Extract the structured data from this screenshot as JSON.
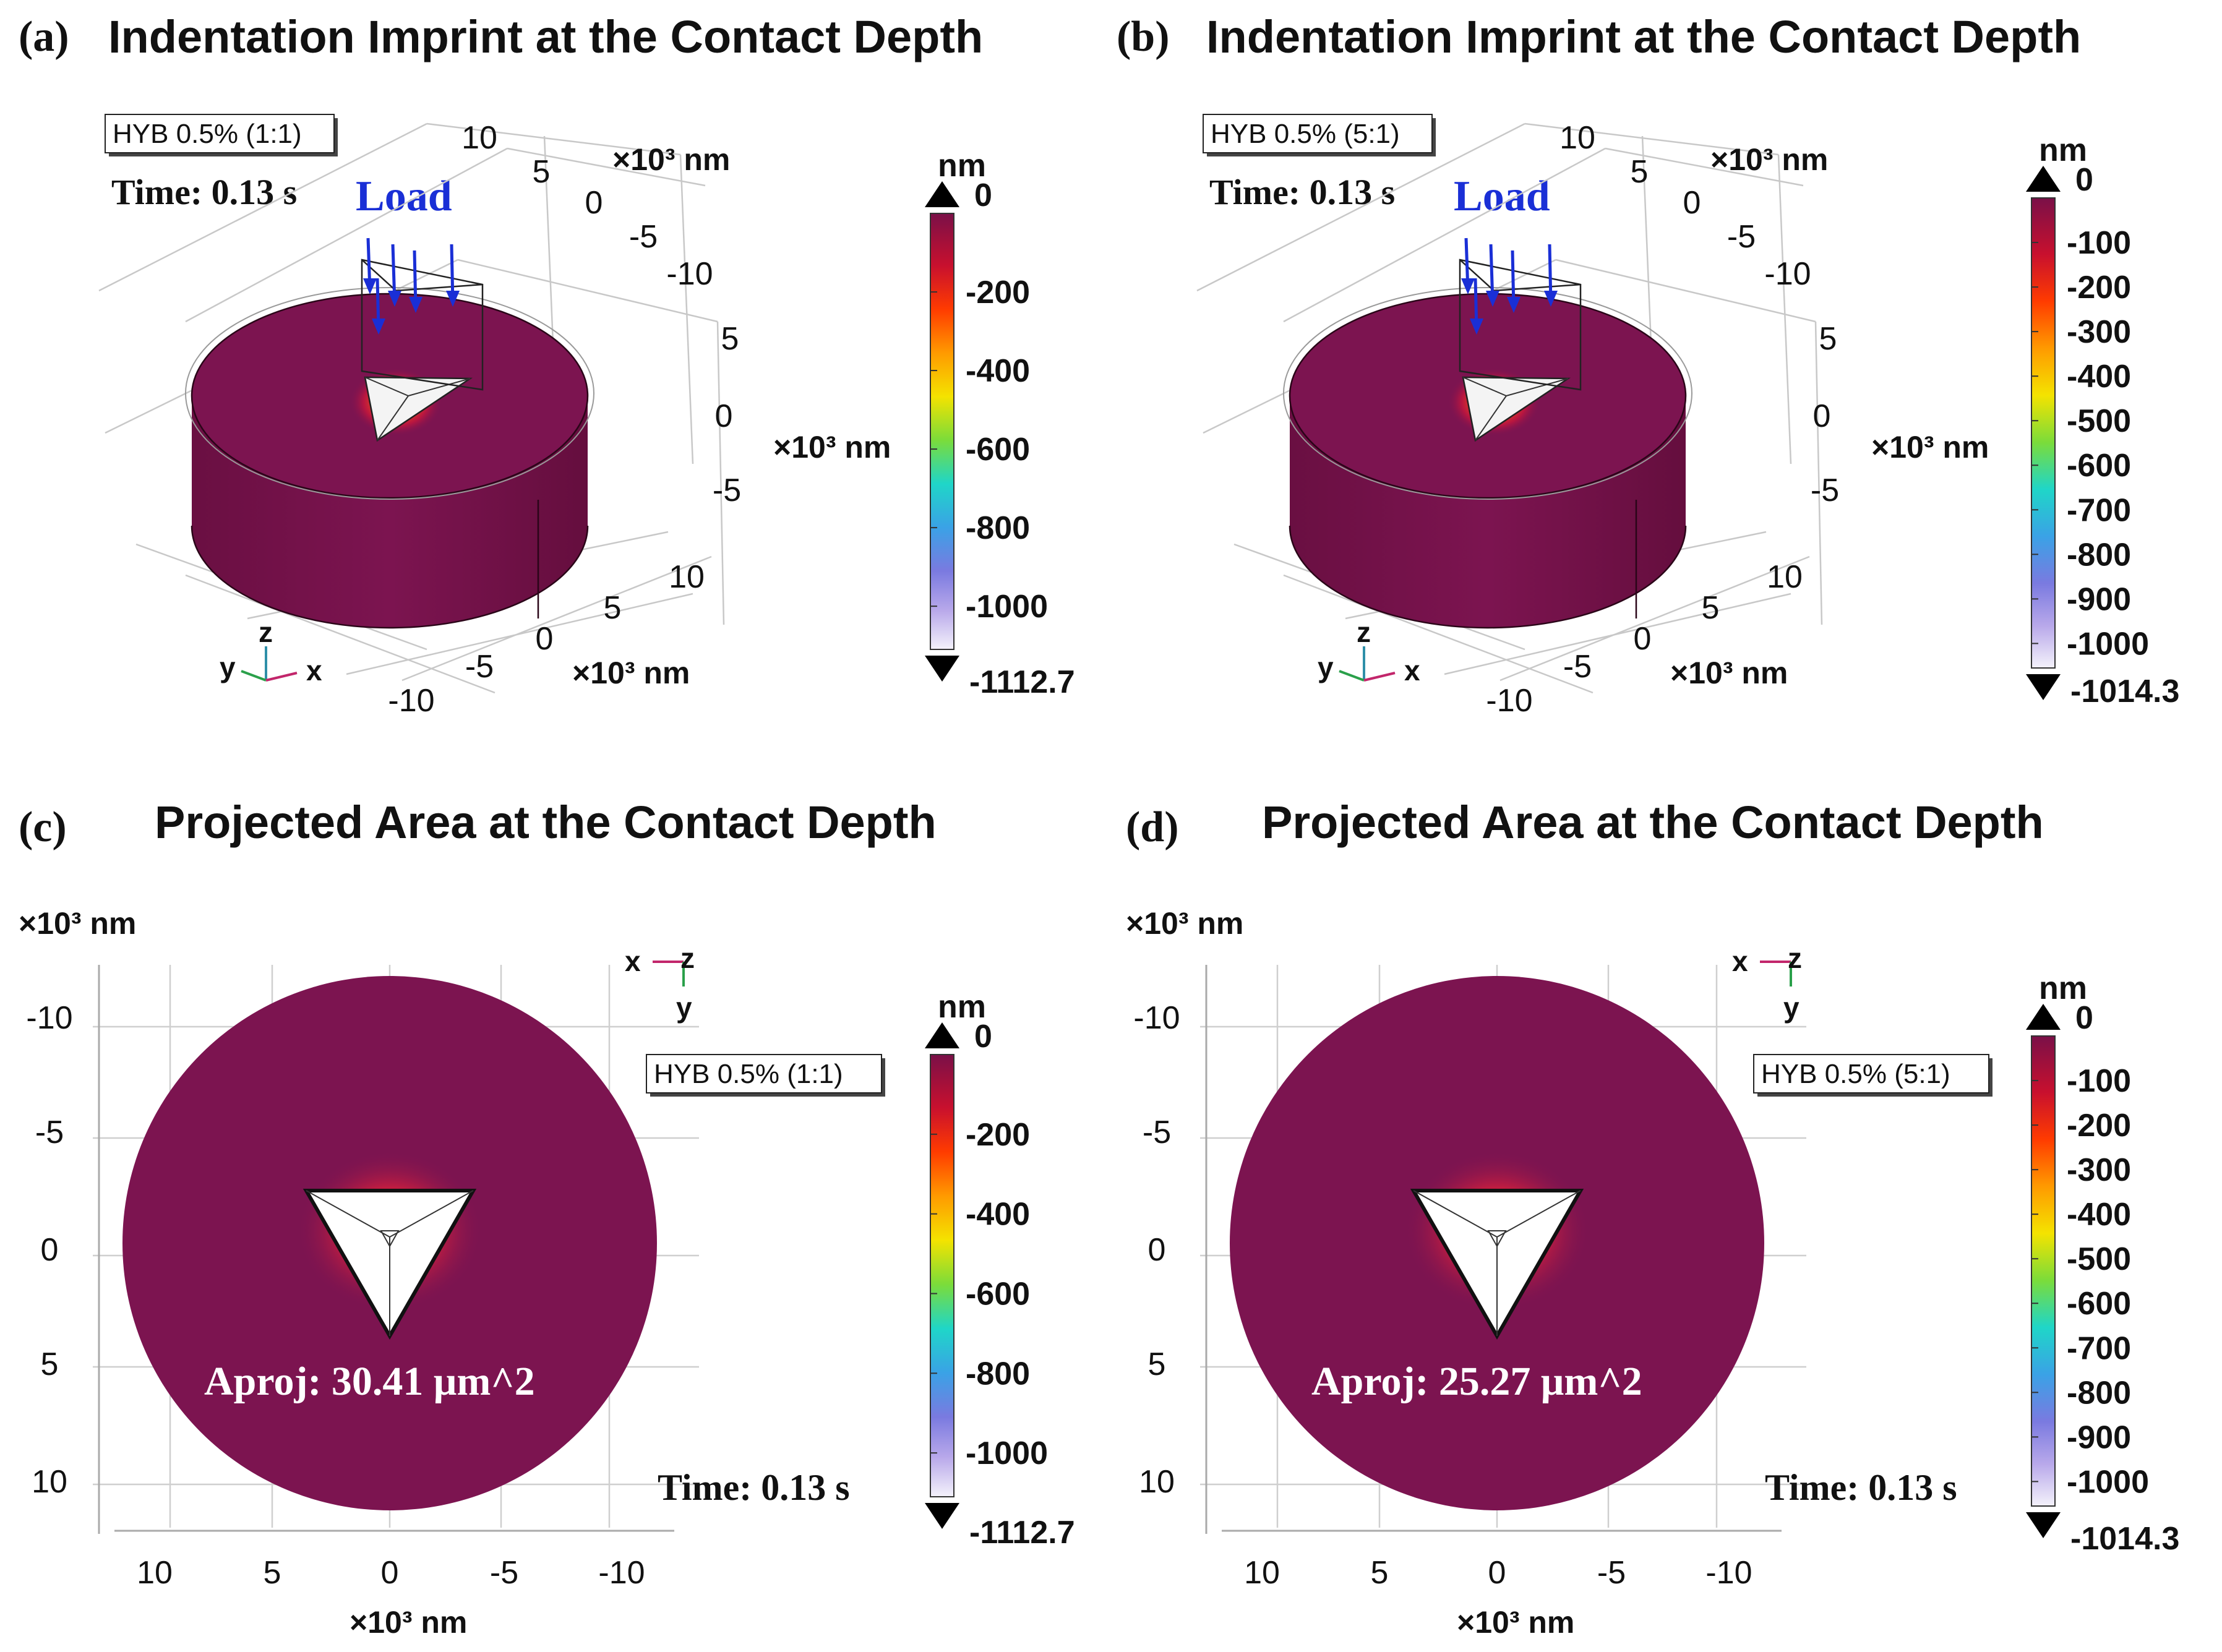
{
  "panels": [
    {
      "id": "a",
      "letter": "(a)",
      "title": "Indentation Imprint at the Contact Depth",
      "sample": "HYB 0.5% (1:1)",
      "time": "Time: 0.13 s",
      "load": "Load",
      "axes": {
        "x_ticks": [
          "10",
          "5",
          "0",
          "-5",
          "-10"
        ],
        "y_ticks": [
          "10",
          "5",
          "0",
          "-5",
          "-10"
        ],
        "z_ticks": [
          "5",
          "0",
          "-5"
        ],
        "unit": "×10³ nm",
        "triad": [
          "y",
          "z",
          "x"
        ]
      },
      "colorbar": {
        "unit": "nm",
        "max_label": "0",
        "min_label": "-1112.7",
        "ticks": [
          "-200",
          "-400",
          "-600",
          "-800",
          "-1000"
        ]
      }
    },
    {
      "id": "b",
      "letter": "(b)",
      "title": "Indentation Imprint at the Contact Depth",
      "sample": "HYB 0.5% (5:1)",
      "time": "Time: 0.13 s",
      "load": "Load",
      "axes": {
        "x_ticks": [
          "10",
          "5",
          "0",
          "-5",
          "-10"
        ],
        "y_ticks": [
          "10",
          "5",
          "0",
          "-5",
          "-10"
        ],
        "z_ticks": [
          "5",
          "0",
          "-5"
        ],
        "unit": "×10³ nm",
        "triad": [
          "y",
          "z",
          "x"
        ]
      },
      "colorbar": {
        "unit": "nm",
        "max_label": "0",
        "min_label": "-1014.3",
        "ticks": [
          "-100",
          "-200",
          "-300",
          "-400",
          "-500",
          "-600",
          "-700",
          "-800",
          "-900",
          "-1000"
        ]
      }
    },
    {
      "id": "c",
      "letter": "(c)",
      "title": "Projected Area at the Contact Depth",
      "sample": "HYB 0.5% (1:1)",
      "time": "Time: 0.13 s",
      "aproj": "Aproj: 30.41 μm^2",
      "axes": {
        "y_ticks": [
          "-10",
          "-5",
          "0",
          "5",
          "10"
        ],
        "x_ticks": [
          "10",
          "5",
          "0",
          "-5",
          "-10"
        ],
        "unit": "×10³ nm",
        "triad": [
          "x",
          "z",
          "y"
        ]
      },
      "colorbar": {
        "unit": "nm",
        "max_label": "0",
        "min_label": "-1112.7",
        "ticks": [
          "-200",
          "-400",
          "-600",
          "-800",
          "-1000"
        ]
      }
    },
    {
      "id": "d",
      "letter": "(d)",
      "title": "Projected Area at the Contact Depth",
      "sample": "HYB 0.5% (5:1)",
      "time": "Time: 0.13 s",
      "aproj": "Aproj: 25.27 μm^2",
      "axes": {
        "y_ticks": [
          "-10",
          "-5",
          "0",
          "5",
          "10"
        ],
        "x_ticks": [
          "10",
          "5",
          "0",
          "-5",
          "-10"
        ],
        "unit": "×10³ nm",
        "triad": [
          "x",
          "z",
          "y"
        ]
      },
      "colorbar": {
        "unit": "nm",
        "max_label": "0",
        "min_label": "-1014.3",
        "ticks": [
          "-100",
          "-200",
          "-300",
          "-400",
          "-500",
          "-600",
          "-700",
          "-800",
          "-900",
          "-1000"
        ]
      }
    }
  ],
  "colors": {
    "surface": "#7c1450",
    "surface_dark": "#5e0d3c",
    "load_arrows": "#1a2fd6",
    "text": "#111111"
  }
}
